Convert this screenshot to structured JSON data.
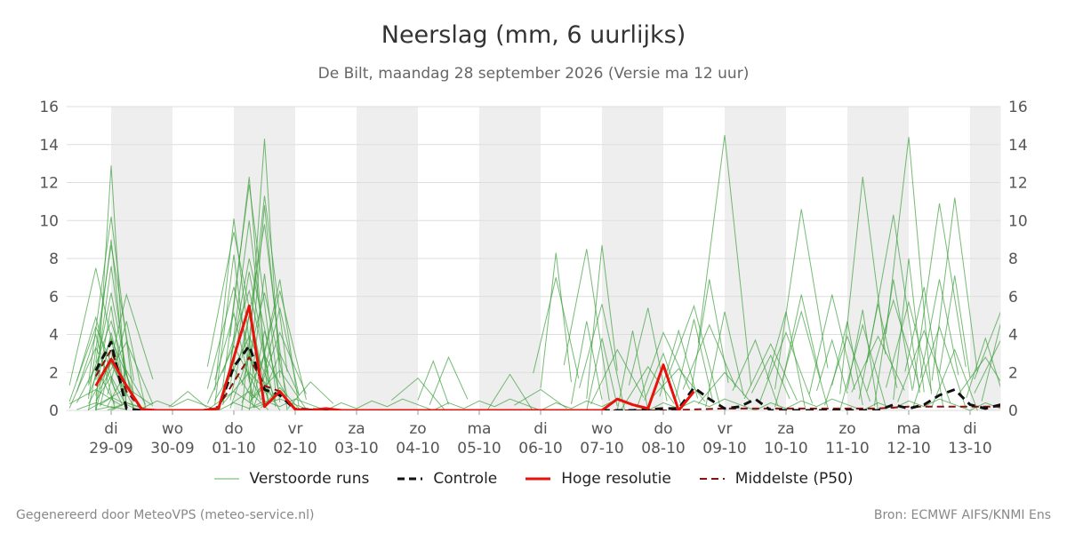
{
  "header": {
    "title": "Neerslag (mm, 6 uurlijks)",
    "subtitle": "De Bilt, maandag 28 september 2026 (Versie ma 12 uur)"
  },
  "footer": {
    "left": "Gegenereerd door MeteoVPS (meteo-service.nl)",
    "right": "Bron: ECMWF AIFS/KNMI Ens"
  },
  "chart_data": {
    "type": "line",
    "x_unit": "6-hour steps starting 29-09 00:00",
    "ylim": [
      0,
      16
    ],
    "yticks": [
      0,
      2,
      4,
      6,
      8,
      10,
      12,
      14,
      16
    ],
    "grid": true,
    "legend_position": "bottom",
    "colors": {
      "ensemble": "#3a9e3a",
      "control": "#111111",
      "hires": "#e8120c",
      "median": "#8b1010",
      "weekend_band": "#eeeeee",
      "grid": "#dddddd"
    },
    "days": [
      {
        "name": "di",
        "date": "29-09"
      },
      {
        "name": "wo",
        "date": "30-09"
      },
      {
        "name": "do",
        "date": "01-10"
      },
      {
        "name": "vr",
        "date": "02-10"
      },
      {
        "name": "za",
        "date": "03-10"
      },
      {
        "name": "zo",
        "date": "04-10"
      },
      {
        "name": "ma",
        "date": "05-10"
      },
      {
        "name": "di",
        "date": "06-10"
      },
      {
        "name": "wo",
        "date": "07-10"
      },
      {
        "name": "do",
        "date": "08-10"
      },
      {
        "name": "vr",
        "date": "09-10"
      },
      {
        "name": "za",
        "date": "10-10"
      },
      {
        "name": "zo",
        "date": "11-10"
      },
      {
        "name": "ma",
        "date": "12-10"
      },
      {
        "name": "di",
        "date": "13-10"
      }
    ],
    "shaded_bands": [
      [
        0,
        1
      ],
      [
        2,
        3
      ],
      [
        4,
        5
      ],
      [
        6,
        7
      ],
      [
        8,
        9
      ],
      [
        10,
        11
      ],
      [
        12,
        13
      ],
      [
        14,
        14.5
      ]
    ],
    "legend": [
      {
        "key": "ensemble",
        "label": "Verstoorde runs"
      },
      {
        "key": "control",
        "label": "Controle"
      },
      {
        "key": "hires",
        "label": "Hoge resolutie"
      },
      {
        "key": "median",
        "label": "Middelste (P50)"
      }
    ],
    "series": {
      "hires": {
        "name": "Hoge resolutie",
        "x": [
          -0.25,
          0,
          0.25,
          0.5,
          0.75,
          1,
          1.25,
          1.5,
          1.75,
          2,
          2.25,
          2.5,
          2.75,
          3,
          3.25,
          3.5,
          3.75,
          4,
          4.25,
          4.5,
          4.75,
          5,
          5.25,
          5.5,
          5.75,
          6,
          6.25,
          6.5,
          6.75,
          7,
          7.25,
          7.5,
          7.75,
          8,
          8.25,
          8.5,
          8.75,
          9,
          9.25,
          9.5
        ],
        "values": [
          1.3,
          2.7,
          1.3,
          0.05,
          0.0,
          0.0,
          0.0,
          0.0,
          0.1,
          2.8,
          5.5,
          0.2,
          1.0,
          0.05,
          0.0,
          0.1,
          0.0,
          0.0,
          0.0,
          0.0,
          0.0,
          0.0,
          0.0,
          0.0,
          0.0,
          0.0,
          0.0,
          0.0,
          0.0,
          0.0,
          0.0,
          0.0,
          0.0,
          0.0,
          0.6,
          0.3,
          0.1,
          2.4,
          0.0,
          1.0
        ]
      },
      "control": {
        "name": "Controle",
        "x": [
          -0.25,
          0,
          0.25,
          0.5,
          1,
          1.5,
          1.75,
          2,
          2.25,
          2.5,
          2.75,
          3,
          3.5,
          4,
          5,
          6,
          7,
          8,
          8.5,
          9,
          9.25,
          9.5,
          9.75,
          10,
          10.25,
          10.5,
          10.75,
          11,
          11.5,
          12,
          12.5,
          12.75,
          13,
          13.25,
          13.5,
          13.75,
          14,
          14.25,
          14.5
        ],
        "values": [
          2.1,
          3.6,
          0.1,
          0.0,
          0.0,
          0.0,
          0.1,
          2.3,
          3.4,
          1.1,
          0.8,
          0.05,
          0.0,
          0.0,
          0.0,
          0.0,
          0.0,
          0.0,
          0.0,
          0.1,
          0.1,
          1.2,
          0.6,
          0.1,
          0.2,
          0.6,
          0.0,
          0.0,
          0.0,
          0.0,
          0.0,
          0.3,
          0.1,
          0.3,
          0.8,
          1.1,
          0.3,
          0.1,
          0.3
        ]
      },
      "median": {
        "name": "Middelste (P50)",
        "x": [
          -0.25,
          0,
          0.25,
          0.5,
          1,
          1.5,
          1.75,
          2,
          2.25,
          2.5,
          2.75,
          3,
          4,
          5,
          6,
          7,
          8,
          9,
          10,
          11,
          12,
          12.5,
          13,
          13.5,
          14,
          14.5
        ],
        "values": [
          1.8,
          3.2,
          1.0,
          0.05,
          0.0,
          0.0,
          0.2,
          1.5,
          2.8,
          1.3,
          1.0,
          0.1,
          0.0,
          0.0,
          0.0,
          0.0,
          0.0,
          0.0,
          0.1,
          0.1,
          0.1,
          0.1,
          0.2,
          0.2,
          0.2,
          0.2
        ]
      },
      "ensemble_peaks": [
        {
          "x": 0,
          "values": [
            12.9,
            10.2,
            9.0,
            8.7,
            7.6,
            6.2,
            5.5,
            4.7,
            4.1,
            3.8,
            3.2,
            2.5,
            1.8,
            0.7,
            0.2
          ]
        },
        {
          "x": -0.25,
          "values": [
            7.5,
            4.9,
            4.4,
            4.0,
            3.3,
            2.3,
            1.1,
            0.4
          ]
        },
        {
          "x": 0.25,
          "values": [
            6.1,
            4.7,
            3.6,
            2.1,
            1.2,
            0.4
          ]
        },
        {
          "x": 2,
          "values": [
            10.1,
            9.4,
            8.2,
            6.5,
            5.1,
            3.4,
            2.2,
            1.0
          ]
        },
        {
          "x": 2.25,
          "values": [
            12.3,
            11.9,
            10.0,
            8.0,
            7.3,
            6.3,
            5.0,
            3.9,
            3.0,
            2.0,
            1.0
          ]
        },
        {
          "x": 2.5,
          "values": [
            14.3,
            11.3,
            10.8,
            9.8,
            7.2,
            6.2,
            4.2,
            2.9,
            1.5
          ]
        },
        {
          "x": 2.75,
          "values": [
            6.9,
            6.3,
            5.4,
            4.1,
            3.0,
            2.1,
            1.2,
            0.6
          ]
        },
        {
          "x": 1.25,
          "values": [
            1.0
          ]
        },
        {
          "x": 3.25,
          "values": [
            1.5
          ]
        },
        {
          "x": 5,
          "values": [
            1.7
          ]
        },
        {
          "x": 5.25,
          "values": [
            2.6
          ]
        },
        {
          "x": 5.5,
          "values": [
            2.8
          ]
        },
        {
          "x": 6.5,
          "values": [
            1.9
          ]
        },
        {
          "x": 7,
          "values": [
            1.1
          ]
        },
        {
          "x": 7.25,
          "values": [
            8.3,
            7.0
          ]
        },
        {
          "x": 7.75,
          "values": [
            8.5,
            4.7
          ]
        },
        {
          "x": 8,
          "values": [
            8.7,
            5.6,
            3.8
          ]
        },
        {
          "x": 8.25,
          "values": [
            3.2
          ]
        },
        {
          "x": 8.5,
          "values": [
            4.2
          ]
        },
        {
          "x": 8.75,
          "values": [
            5.4,
            2.3
          ]
        },
        {
          "x": 9,
          "values": [
            4.1,
            3.0
          ]
        },
        {
          "x": 9.25,
          "values": [
            4.2,
            2.2
          ]
        },
        {
          "x": 9.5,
          "values": [
            5.5,
            4.8
          ]
        },
        {
          "x": 9.75,
          "values": [
            6.9,
            4.5
          ]
        },
        {
          "x": 10,
          "values": [
            14.5,
            5.2,
            2.0
          ]
        },
        {
          "x": 10.5,
          "values": [
            3.7
          ]
        },
        {
          "x": 10.75,
          "values": [
            3.5,
            2.9
          ]
        },
        {
          "x": 11,
          "values": [
            5.2,
            4.1
          ]
        },
        {
          "x": 11.25,
          "values": [
            10.6,
            6.1,
            5.2
          ]
        },
        {
          "x": 11.75,
          "values": [
            6.1,
            3.7
          ]
        },
        {
          "x": 12,
          "values": [
            4.7,
            3.9
          ]
        },
        {
          "x": 12.25,
          "values": [
            12.3,
            5.3,
            4.5
          ]
        },
        {
          "x": 12.5,
          "values": [
            5.6,
            3.9
          ]
        },
        {
          "x": 12.75,
          "values": [
            10.3,
            6.9,
            5.8
          ]
        },
        {
          "x": 13,
          "values": [
            14.4,
            8.0,
            5.7
          ]
        },
        {
          "x": 13.25,
          "values": [
            6.5,
            4.2
          ]
        },
        {
          "x": 13.5,
          "values": [
            10.9,
            6.9,
            4.4
          ]
        },
        {
          "x": 13.75,
          "values": [
            11.2,
            7.1,
            3.2
          ]
        },
        {
          "x": 14.25,
          "values": [
            3.8,
            2.8
          ]
        },
        {
          "x": 14.5,
          "values": [
            5.2,
            4.6,
            3.7
          ]
        }
      ]
    }
  }
}
